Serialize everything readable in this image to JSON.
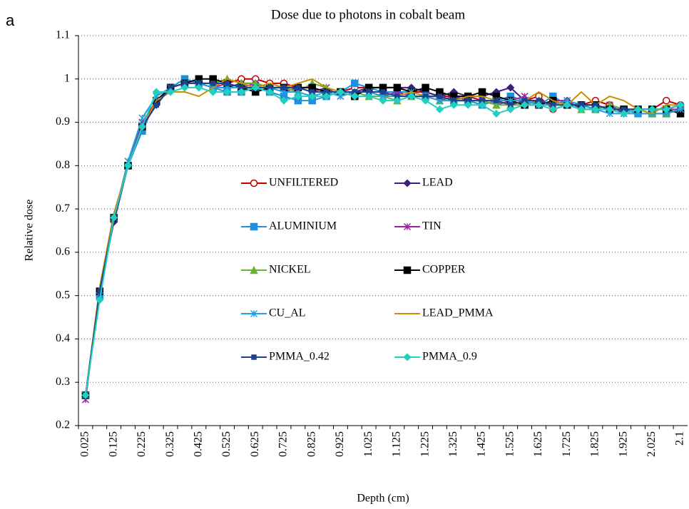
{
  "panel_label": "a",
  "chart_data": {
    "type": "line",
    "title": "Dose due to photons in cobalt beam",
    "x_label": "Depth (cm)",
    "y_label": "Relative dose",
    "categories": [
      "0.025",
      null,
      "0.125",
      null,
      "0.225",
      null,
      "0.325",
      null,
      "0.425",
      null,
      "0.525",
      null,
      "0.625",
      null,
      "0.725",
      null,
      "0.825",
      null,
      "0.925",
      null,
      "1.025",
      null,
      "1.125",
      null,
      "1.225",
      null,
      "1.325",
      null,
      "1.425",
      null,
      "1.525",
      null,
      "1.625",
      null,
      "1.725",
      null,
      "1.825",
      null,
      "1.925",
      null,
      "2.025",
      null,
      "2.1"
    ],
    "ylim": [
      0.2,
      1.1
    ],
    "yticks": [
      0.2,
      0.3,
      0.4,
      0.5,
      0.6,
      0.7,
      0.8,
      0.9,
      1,
      1.1
    ],
    "grid": true,
    "series": [
      {
        "name": "UNFILTERED",
        "color": "#c00000",
        "marker": "circle",
        "values": [
          0.27,
          0.51,
          0.68,
          0.8,
          0.89,
          0.95,
          0.98,
          0.99,
          0.99,
          0.99,
          0.99,
          1.0,
          1.0,
          0.99,
          0.99,
          0.98,
          0.98,
          0.97,
          0.97,
          0.98,
          0.98,
          0.98,
          0.98,
          0.97,
          0.97,
          0.96,
          0.96,
          0.96,
          0.95,
          0.95,
          0.95,
          0.95,
          0.96,
          0.93,
          0.94,
          0.94,
          0.95,
          0.94,
          0.93,
          0.93,
          0.93,
          0.95,
          0.94
        ]
      },
      {
        "name": "LEAD",
        "color": "#3b1f7a",
        "marker": "diamond",
        "values": [
          0.27,
          0.51,
          0.67,
          0.8,
          0.89,
          0.94,
          0.98,
          0.99,
          0.99,
          0.98,
          0.98,
          0.99,
          0.99,
          0.98,
          0.98,
          0.98,
          0.97,
          0.97,
          0.97,
          0.97,
          0.98,
          0.98,
          0.98,
          0.98,
          0.97,
          0.96,
          0.97,
          0.96,
          0.96,
          0.97,
          0.98,
          0.95,
          0.95,
          0.94,
          0.95,
          0.94,
          0.94,
          0.93,
          0.92,
          0.93,
          0.93,
          0.93,
          0.94
        ]
      },
      {
        "name": "ALUMINIUM",
        "color": "#1f8fe0",
        "marker": "square",
        "values": [
          0.27,
          0.5,
          0.68,
          0.8,
          0.88,
          0.95,
          0.98,
          1.0,
          0.99,
          0.98,
          0.97,
          0.97,
          0.98,
          0.97,
          0.96,
          0.95,
          0.95,
          0.96,
          0.97,
          0.99,
          0.98,
          0.97,
          0.97,
          0.97,
          0.96,
          0.96,
          0.95,
          0.95,
          0.94,
          0.95,
          0.96,
          0.95,
          0.94,
          0.96,
          0.94,
          0.94,
          0.93,
          0.93,
          0.93,
          0.92,
          0.92,
          0.92,
          0.93
        ]
      },
      {
        "name": "TIN",
        "color": "#a020a0",
        "marker": "star",
        "values": [
          0.26,
          0.51,
          0.68,
          0.81,
          0.9,
          0.95,
          0.98,
          0.99,
          0.99,
          0.98,
          0.99,
          0.98,
          0.99,
          0.98,
          0.97,
          0.98,
          0.97,
          0.98,
          0.96,
          0.97,
          0.97,
          0.96,
          0.97,
          0.96,
          0.96,
          0.95,
          0.96,
          0.95,
          0.95,
          0.94,
          0.95,
          0.96,
          0.94,
          0.95,
          0.95,
          0.93,
          0.93,
          0.94,
          0.92,
          0.93,
          0.93,
          0.93,
          0.93
        ]
      },
      {
        "name": "NICKEL",
        "color": "#66b32e",
        "marker": "triangle",
        "values": [
          0.27,
          0.51,
          0.68,
          0.8,
          0.89,
          0.95,
          0.98,
          0.99,
          0.99,
          0.99,
          1.0,
          0.99,
          0.99,
          0.98,
          0.98,
          0.97,
          0.99,
          0.98,
          0.97,
          0.97,
          0.96,
          0.96,
          0.95,
          0.96,
          0.96,
          0.95,
          0.95,
          0.95,
          0.95,
          0.94,
          0.94,
          0.94,
          0.95,
          0.94,
          0.94,
          0.93,
          0.93,
          0.94,
          0.93,
          0.93,
          0.92,
          0.92,
          0.93
        ]
      },
      {
        "name": "COPPER",
        "color": "#000000",
        "marker": "square",
        "values": [
          0.27,
          0.51,
          0.68,
          0.8,
          0.89,
          0.95,
          0.98,
          0.99,
          1.0,
          1.0,
          0.99,
          0.98,
          0.97,
          0.98,
          0.98,
          0.98,
          0.98,
          0.97,
          0.97,
          0.96,
          0.98,
          0.98,
          0.98,
          0.97,
          0.98,
          0.97,
          0.96,
          0.96,
          0.97,
          0.96,
          0.95,
          0.94,
          0.94,
          0.95,
          0.94,
          0.94,
          0.94,
          0.93,
          0.93,
          0.93,
          0.93,
          0.93,
          0.92
        ]
      },
      {
        "name": "CU_AL",
        "color": "#1fa0e0",
        "marker": "asterisk",
        "values": [
          0.27,
          0.5,
          0.68,
          0.81,
          0.91,
          0.96,
          0.98,
          0.99,
          0.99,
          0.98,
          0.98,
          0.98,
          0.98,
          0.98,
          0.97,
          0.97,
          0.96,
          0.97,
          0.96,
          0.97,
          0.97,
          0.96,
          0.96,
          0.97,
          0.96,
          0.95,
          0.95,
          0.95,
          0.95,
          0.95,
          0.95,
          0.95,
          0.94,
          0.94,
          0.95,
          0.94,
          0.93,
          0.92,
          0.92,
          0.92,
          0.92,
          0.92,
          0.93
        ]
      },
      {
        "name": "LEAD_PMMA",
        "color": "#c89000",
        "marker": "none",
        "values": [
          0.27,
          0.52,
          0.69,
          0.8,
          0.89,
          0.95,
          0.97,
          0.97,
          0.96,
          0.98,
          1.0,
          0.99,
          0.98,
          0.99,
          0.98,
          0.99,
          1.0,
          0.98,
          0.97,
          0.97,
          0.97,
          0.97,
          0.96,
          0.97,
          0.96,
          0.96,
          0.95,
          0.96,
          0.96,
          0.95,
          0.94,
          0.95,
          0.97,
          0.95,
          0.94,
          0.97,
          0.94,
          0.96,
          0.95,
          0.93,
          0.92,
          0.94,
          0.94
        ]
      },
      {
        "name": "PMMA_0.42",
        "color": "#1f3f8f",
        "marker": "smallsquare",
        "values": [
          0.27,
          0.51,
          0.68,
          0.8,
          0.89,
          0.94,
          0.98,
          0.99,
          0.99,
          0.99,
          0.99,
          0.98,
          0.98,
          0.98,
          0.98,
          0.98,
          0.97,
          0.97,
          0.97,
          0.97,
          0.97,
          0.97,
          0.96,
          0.96,
          0.96,
          0.96,
          0.95,
          0.95,
          0.95,
          0.95,
          0.94,
          0.95,
          0.95,
          0.94,
          0.94,
          0.94,
          0.94,
          0.93,
          0.93,
          0.93,
          0.93,
          0.93,
          0.94
        ]
      },
      {
        "name": "PMMA_0.9",
        "color": "#20d0c0",
        "marker": "diamond",
        "values": [
          0.27,
          0.49,
          0.68,
          0.8,
          0.89,
          0.97,
          0.97,
          0.98,
          0.98,
          0.97,
          0.97,
          0.97,
          0.98,
          0.97,
          0.95,
          0.96,
          0.96,
          0.96,
          0.97,
          0.96,
          0.96,
          0.95,
          0.95,
          0.96,
          0.95,
          0.93,
          0.94,
          0.94,
          0.94,
          0.92,
          0.93,
          0.94,
          0.94,
          0.93,
          0.94,
          0.93,
          0.93,
          0.93,
          0.92,
          0.93,
          0.93,
          0.93,
          0.94
        ]
      }
    ]
  }
}
